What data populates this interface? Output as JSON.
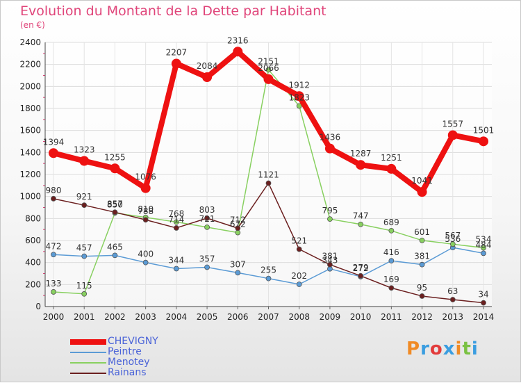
{
  "title": "Evolution du Montant de la Dette par Habitant",
  "subtitle": "(en €)",
  "logo": "Proxiti",
  "chart_data": {
    "type": "line",
    "x": [
      "2000",
      "2001",
      "2002",
      "2003",
      "2004",
      "2005",
      "2006",
      "2007",
      "2008",
      "2009",
      "2010",
      "2011",
      "2012",
      "2013",
      "2014"
    ],
    "ylim": [
      0,
      2400
    ],
    "yticks": [
      0,
      200,
      400,
      600,
      800,
      1000,
      1200,
      1400,
      1600,
      1800,
      2000,
      2200,
      2400
    ],
    "grid": true,
    "legend_position": "bottom-left",
    "series": [
      {
        "name": "CHEVIGNY",
        "color": "#ee1111",
        "values": [
          1394,
          1323,
          1255,
          1076,
          2207,
          2084,
          2316,
          2066,
          1912,
          1436,
          1287,
          1251,
          1041,
          1557,
          1501
        ]
      },
      {
        "name": "Peintre",
        "color": "#5b9bd5",
        "values": [
          472,
          457,
          465,
          400,
          344,
          357,
          307,
          255,
          202,
          343,
          272,
          416,
          381,
          536,
          484
        ]
      },
      {
        "name": "Menotey",
        "color": "#88d060",
        "values": [
          133,
          115,
          850,
          810,
          768,
          721,
          672,
          2151,
          1823,
          795,
          747,
          689,
          601,
          567,
          534
        ]
      },
      {
        "name": "Rainans",
        "color": "#6b1f1f",
        "values": [
          980,
          921,
          857,
          788,
          714,
          803,
          712,
          1121,
          521,
          381,
          279,
          169,
          95,
          63,
          34
        ]
      }
    ]
  }
}
